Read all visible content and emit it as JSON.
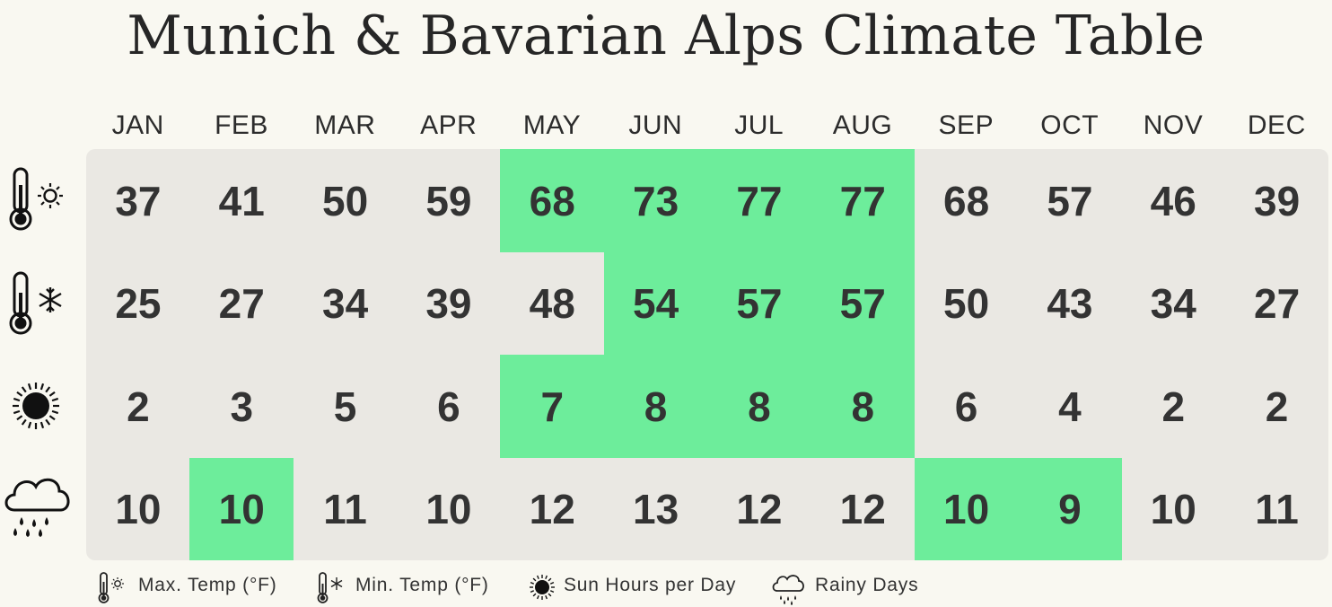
{
  "title": "Munich & Bavarian Alps Climate Table",
  "legend": {
    "max_temp": "Max. Temp (°F)",
    "min_temp": "Min. Temp (°F)",
    "sun_hours": "Sun Hours per Day",
    "rainy_days": "Rainy Days"
  },
  "colors": {
    "highlight": "#6ded9b",
    "cell_background": "#eae8e3",
    "page_background": "#f9f8f1"
  },
  "chart_data": {
    "type": "table",
    "title": "Munich & Bavarian Alps Climate Table",
    "categories": [
      "JAN",
      "FEB",
      "MAR",
      "APR",
      "MAY",
      "JUN",
      "JUL",
      "AUG",
      "SEP",
      "OCT",
      "NOV",
      "DEC"
    ],
    "series": [
      {
        "name": "Max. Temp (°F)",
        "icon": "thermometer-sun-icon",
        "values": [
          37,
          41,
          50,
          59,
          68,
          73,
          77,
          77,
          68,
          57,
          46,
          39
        ],
        "highlighted": [
          false,
          false,
          false,
          false,
          true,
          true,
          true,
          true,
          false,
          false,
          false,
          false
        ]
      },
      {
        "name": "Min. Temp (°F)",
        "icon": "thermometer-snowflake-icon",
        "values": [
          25,
          27,
          34,
          39,
          48,
          54,
          57,
          57,
          50,
          43,
          34,
          27
        ],
        "highlighted": [
          false,
          false,
          false,
          false,
          false,
          true,
          true,
          true,
          false,
          false,
          false,
          false
        ]
      },
      {
        "name": "Sun Hours per Day",
        "icon": "sun-icon",
        "values": [
          2,
          3,
          5,
          6,
          7,
          8,
          8,
          8,
          6,
          4,
          2,
          2
        ],
        "highlighted": [
          false,
          false,
          false,
          false,
          true,
          true,
          true,
          true,
          false,
          false,
          false,
          false
        ]
      },
      {
        "name": "Rainy Days",
        "icon": "rain-cloud-icon",
        "values": [
          10,
          10,
          11,
          10,
          12,
          13,
          12,
          12,
          10,
          9,
          10,
          11
        ],
        "highlighted": [
          false,
          true,
          false,
          false,
          false,
          false,
          false,
          false,
          true,
          true,
          false,
          false
        ]
      }
    ]
  }
}
